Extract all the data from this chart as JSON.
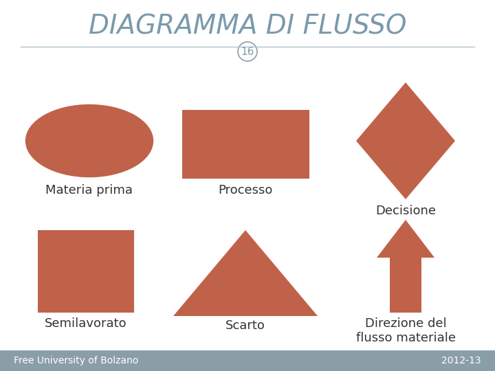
{
  "title": "DIAGRAMMA DI FLUSSO",
  "slide_number": "16",
  "shape_color": "#c0624a",
  "title_color": "#7a9aaa",
  "bg_color": "#ffffff",
  "footer_bg": "#8a9ea8",
  "footer_text_left": "Free University of Bolzano",
  "footer_text_right": "2012-13",
  "footer_text_color": "#ffffff",
  "labels": {
    "ellipse": "Materia prima",
    "rectangle_proc": "Processo",
    "diamond": "Decisione",
    "square": "Semilavorato",
    "triangle": "Scarto",
    "arrow": "Direzione del\nflusso materiale"
  },
  "title_fontsize": 28,
  "label_fontsize": 13,
  "number_fontsize": 11,
  "footer_fontsize": 10
}
